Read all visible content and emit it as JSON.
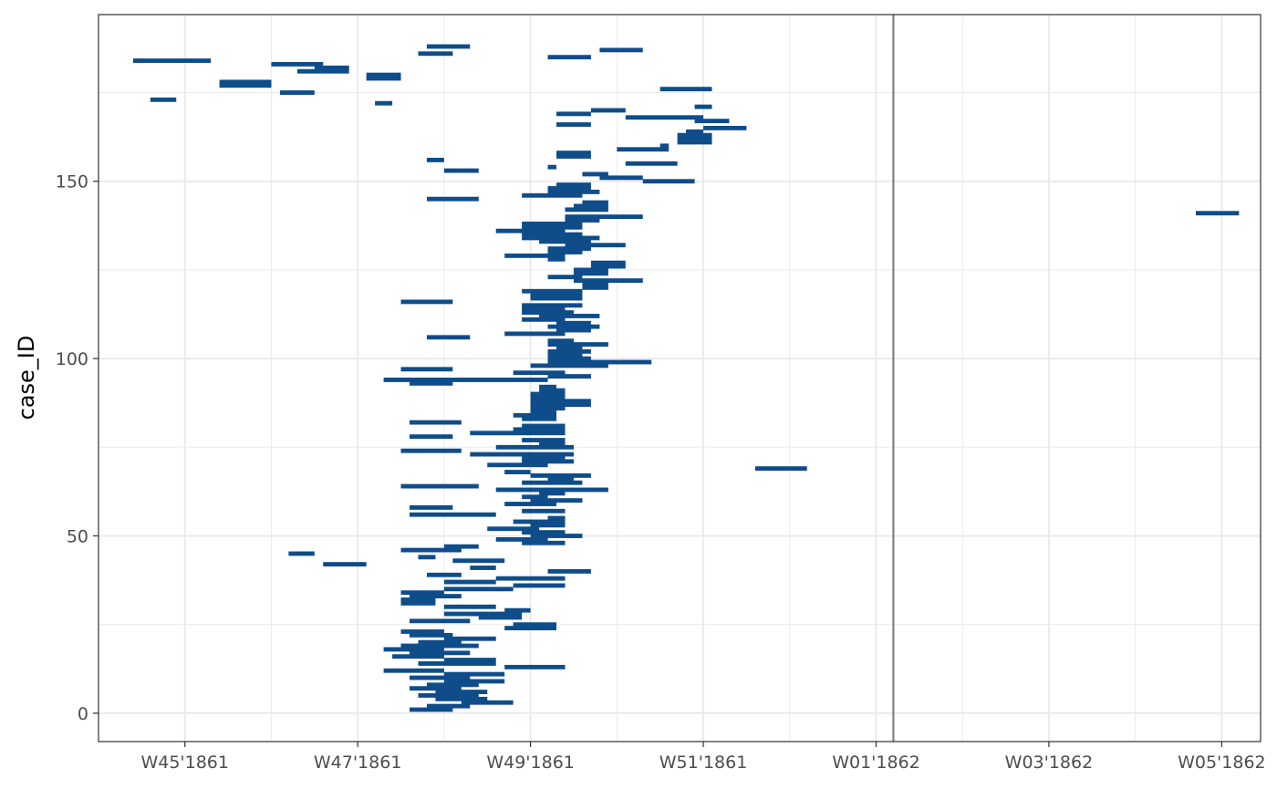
{
  "chart_data": {
    "type": "timeline",
    "title": "",
    "xlabel": "",
    "ylabel": "case_ID",
    "x_unit": "week",
    "x_ticks": [
      {
        "week": 45,
        "label": "W45'1861"
      },
      {
        "week": 47,
        "label": "W47'1861"
      },
      {
        "week": 49,
        "label": "W49'1861"
      },
      {
        "week": 51,
        "label": "W51'1861"
      },
      {
        "week": 53,
        "label": "W01'1862"
      },
      {
        "week": 55,
        "label": "W03'1862"
      },
      {
        "week": 57,
        "label": "W05'1862"
      }
    ],
    "xlim": [
      44.0,
      57.45
    ],
    "y_ticks": [
      0,
      50,
      100,
      150
    ],
    "ylim": [
      -8,
      197
    ],
    "reference_line_week": 53.2,
    "grid": true,
    "colors": {
      "bar": "#0f4c8a",
      "reference_line": "#808080",
      "grid": "#ebebeb",
      "panel_border": "#333333"
    },
    "series": [
      {
        "segments": [
          [
            1,
            47.6,
            48.1
          ],
          [
            2,
            47.8,
            48.3
          ],
          [
            3,
            48.2,
            48.8
          ],
          [
            4,
            47.9,
            48.5
          ],
          [
            5,
            47.7,
            48.4
          ],
          [
            6,
            47.9,
            48.5
          ],
          [
            7,
            47.6,
            48.2
          ],
          [
            8,
            47.8,
            48.4
          ],
          [
            9,
            48.0,
            48.7
          ],
          [
            10,
            47.6,
            48.3
          ],
          [
            11,
            48.0,
            48.7
          ],
          [
            12,
            47.3,
            48.0
          ],
          [
            13,
            48.7,
            49.4
          ],
          [
            14,
            47.7,
            48.6
          ],
          [
            15,
            48.0,
            48.6
          ],
          [
            16,
            47.4,
            48.0
          ],
          [
            17,
            47.6,
            48.3
          ],
          [
            18,
            47.3,
            48.0
          ],
          [
            19,
            47.5,
            48.4
          ],
          [
            20,
            47.7,
            48.2
          ],
          [
            21,
            48.0,
            48.6
          ],
          [
            22,
            47.6,
            48.1
          ],
          [
            23,
            47.5,
            48.0
          ],
          [
            24,
            48.7,
            49.3
          ],
          [
            25,
            48.8,
            49.3
          ],
          [
            26,
            47.6,
            48.3
          ],
          [
            27,
            48.4,
            48.9
          ],
          [
            28,
            48.0,
            48.9
          ],
          [
            29,
            48.7,
            49.0
          ],
          [
            30,
            48.0,
            48.6
          ],
          [
            31,
            47.5,
            47.9
          ],
          [
            32,
            47.5,
            47.9
          ],
          [
            33,
            47.6,
            48.2
          ],
          [
            34,
            47.5,
            48.0
          ],
          [
            35,
            48.0,
            48.8
          ],
          [
            36,
            48.8,
            49.4
          ],
          [
            37,
            48.0,
            48.6
          ],
          [
            38,
            48.6,
            49.4
          ],
          [
            39,
            47.8,
            48.2
          ],
          [
            40,
            49.2,
            49.7
          ],
          [
            41,
            48.3,
            48.6
          ],
          [
            42,
            46.6,
            47.1
          ],
          [
            43,
            48.1,
            48.7
          ],
          [
            44,
            47.7,
            47.9
          ],
          [
            45,
            46.2,
            46.5
          ],
          [
            46,
            47.5,
            48.2
          ],
          [
            47,
            48.0,
            48.4
          ],
          [
            48,
            48.9,
            49.4
          ],
          [
            49,
            48.6,
            49.2
          ],
          [
            50,
            49.0,
            49.6
          ],
          [
            51,
            48.9,
            49.4
          ],
          [
            52,
            48.5,
            49.1
          ],
          [
            53,
            49.0,
            49.4
          ],
          [
            54,
            48.8,
            49.4
          ],
          [
            55,
            49.2,
            49.4
          ],
          [
            56,
            47.6,
            48.6
          ],
          [
            57,
            48.9,
            49.4
          ],
          [
            58,
            47.6,
            48.1
          ],
          [
            59,
            48.7,
            49.3
          ],
          [
            60,
            49.0,
            49.6
          ],
          [
            61,
            48.9,
            49.2
          ],
          [
            62,
            49.1,
            49.4
          ],
          [
            63,
            48.6,
            49.9
          ],
          [
            64,
            47.5,
            48.4
          ],
          [
            65,
            48.9,
            49.6
          ],
          [
            66,
            49.2,
            49.5
          ],
          [
            67,
            49.0,
            49.7
          ],
          [
            68,
            48.7,
            49.0
          ],
          [
            69,
            51.6,
            52.2
          ],
          [
            70,
            48.5,
            49.2
          ],
          [
            71,
            48.9,
            49.5
          ],
          [
            72,
            48.9,
            49.4
          ],
          [
            73,
            48.3,
            49.5
          ],
          [
            74,
            47.5,
            48.2
          ],
          [
            75,
            48.6,
            49.5
          ],
          [
            76,
            49.1,
            49.4
          ],
          [
            77,
            48.9,
            49.4
          ],
          [
            78,
            47.6,
            48.1
          ],
          [
            79,
            48.3,
            49.4
          ],
          [
            80,
            48.8,
            49.4
          ],
          [
            81,
            48.9,
            49.4
          ],
          [
            82,
            47.6,
            48.2
          ],
          [
            83,
            48.9,
            49.3
          ],
          [
            84,
            48.8,
            49.3
          ],
          [
            85,
            49.0,
            49.3
          ],
          [
            86,
            49.0,
            49.4
          ],
          [
            87,
            49.0,
            49.7
          ],
          [
            88,
            49.0,
            49.7
          ],
          [
            89,
            49.0,
            49.4
          ],
          [
            90,
            49.0,
            49.4
          ],
          [
            91,
            49.1,
            49.4
          ],
          [
            92,
            49.1,
            49.3
          ],
          [
            93,
            47.6,
            48.1
          ],
          [
            94,
            47.3,
            49.2
          ],
          [
            95,
            49.2,
            49.7
          ],
          [
            96,
            48.8,
            49.4
          ],
          [
            97,
            47.5,
            48.1
          ],
          [
            98,
            49.0,
            49.9
          ],
          [
            99,
            49.2,
            50.4
          ],
          [
            100,
            49.2,
            49.7
          ],
          [
            101,
            49.2,
            49.6
          ],
          [
            102,
            49.2,
            49.7
          ],
          [
            103,
            49.3,
            49.6
          ],
          [
            104,
            49.2,
            49.9
          ],
          [
            105,
            49.2,
            49.5
          ],
          [
            106,
            47.8,
            48.3
          ],
          [
            107,
            48.7,
            49.4
          ],
          [
            108,
            49.3,
            49.7
          ],
          [
            109,
            49.2,
            49.8
          ],
          [
            110,
            49.3,
            49.7
          ],
          [
            111,
            48.9,
            49.4
          ],
          [
            112,
            49.1,
            49.8
          ],
          [
            113,
            48.9,
            49.5
          ],
          [
            114,
            48.9,
            49.4
          ],
          [
            115,
            48.9,
            49.6
          ],
          [
            116,
            47.5,
            48.1
          ],
          [
            117,
            49.0,
            49.6
          ],
          [
            118,
            49.0,
            49.6
          ],
          [
            119,
            48.9,
            49.6
          ],
          [
            120,
            49.6,
            49.9
          ],
          [
            121,
            49.6,
            49.9
          ],
          [
            122,
            49.5,
            50.3
          ],
          [
            123,
            49.2,
            49.6
          ],
          [
            124,
            49.5,
            49.9
          ],
          [
            125,
            49.5,
            49.9
          ],
          [
            126,
            49.7,
            50.1
          ],
          [
            127,
            49.7,
            50.1
          ],
          [
            128,
            49.2,
            49.4
          ],
          [
            129,
            48.7,
            49.4
          ],
          [
            130,
            49.2,
            49.6
          ],
          [
            131,
            49.2,
            49.7
          ],
          [
            132,
            49.4,
            50.1
          ],
          [
            133,
            49.1,
            49.7
          ],
          [
            134,
            48.9,
            49.8
          ],
          [
            135,
            48.9,
            49.6
          ],
          [
            136,
            48.6,
            49.4
          ],
          [
            137,
            48.9,
            49.6
          ],
          [
            138,
            48.9,
            49.6
          ],
          [
            139,
            49.4,
            49.8
          ],
          [
            140,
            49.4,
            50.3
          ],
          [
            141,
            56.7,
            57.2
          ],
          [
            142,
            49.4,
            49.9
          ],
          [
            143,
            49.5,
            49.9
          ],
          [
            144,
            49.6,
            49.9
          ],
          [
            145,
            47.8,
            48.4
          ],
          [
            146,
            48.9,
            49.6
          ],
          [
            147,
            49.2,
            49.8
          ],
          [
            148,
            49.2,
            49.7
          ],
          [
            149,
            49.3,
            49.7
          ],
          [
            150,
            50.3,
            50.9
          ],
          [
            151,
            49.8,
            50.3
          ],
          [
            152,
            49.6,
            49.9
          ],
          [
            153,
            48.0,
            48.4
          ],
          [
            154,
            49.2,
            49.3
          ],
          [
            155,
            50.1,
            50.7
          ],
          [
            156,
            47.8,
            48.0
          ],
          [
            157,
            49.3,
            49.7
          ],
          [
            158,
            49.3,
            49.7
          ],
          [
            159,
            50.0,
            50.6
          ],
          [
            160,
            50.5,
            50.6
          ],
          [
            161,
            50.7,
            51.1
          ],
          [
            162,
            50.7,
            51.1
          ],
          [
            163,
            50.7,
            51.1
          ],
          [
            164,
            50.8,
            51.0
          ],
          [
            165,
            51.0,
            51.5
          ],
          [
            166,
            49.3,
            49.7
          ],
          [
            167,
            50.9,
            51.3
          ],
          [
            168,
            50.1,
            51.0
          ],
          [
            169,
            49.3,
            49.7
          ],
          [
            170,
            49.7,
            50.1
          ],
          [
            171,
            50.9,
            51.1
          ],
          [
            172,
            47.2,
            47.4
          ],
          [
            173,
            44.6,
            44.9
          ],
          [
            175,
            46.1,
            46.5
          ],
          [
            176,
            50.5,
            51.1
          ],
          [
            177,
            45.4,
            46.0
          ],
          [
            178,
            45.4,
            46.0
          ],
          [
            179,
            47.1,
            47.5
          ],
          [
            180,
            47.1,
            47.5
          ],
          [
            181,
            46.3,
            46.9
          ],
          [
            182,
            46.5,
            46.9
          ],
          [
            183,
            46.0,
            46.6
          ],
          [
            184,
            44.4,
            45.3
          ],
          [
            185,
            49.2,
            49.7
          ],
          [
            186,
            47.7,
            48.1
          ],
          [
            187,
            49.8,
            50.3
          ],
          [
            188,
            47.8,
            48.3
          ]
        ]
      }
    ]
  }
}
